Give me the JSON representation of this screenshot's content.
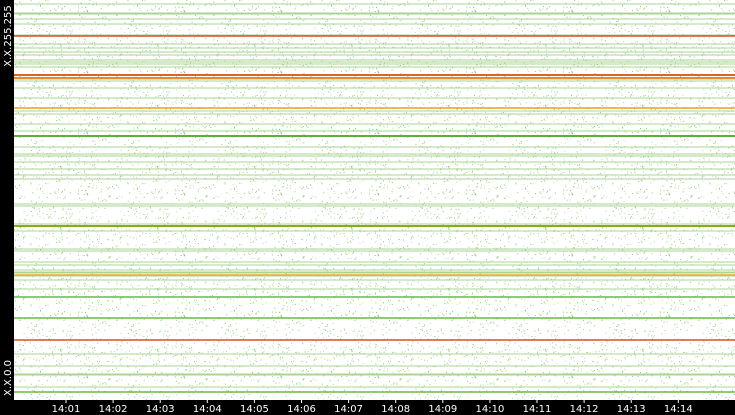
{
  "axis": {
    "y_top": "X.X.255.255",
    "y_bottom": "X.X.0.0",
    "x_ticks": [
      "14:01",
      "14:02",
      "14:03",
      "14:04",
      "14:05",
      "14:06",
      "14:07",
      "14:08",
      "14:09",
      "14:10",
      "14:11",
      "14:12",
      "14:13",
      "14:14"
    ]
  }
}
